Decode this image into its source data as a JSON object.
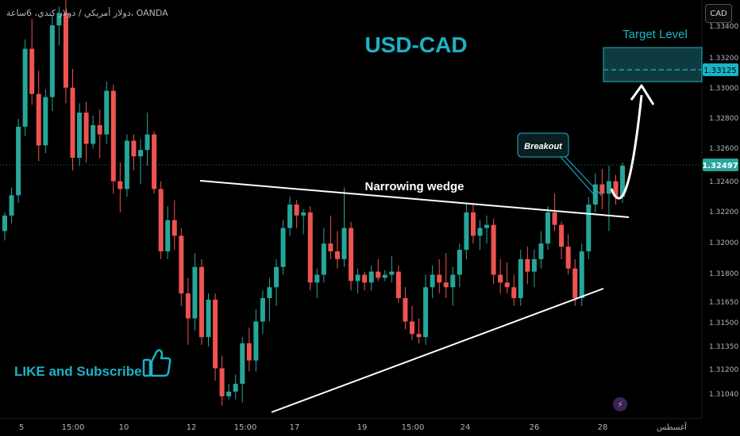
{
  "header": {
    "symbol_line": "دولار أمريكي / دولار كندي، 6ساعة، OANDA"
  },
  "currency_button": "CAD",
  "colors": {
    "up": "#26a69a",
    "down": "#ef5350",
    "accent": "#1ab3c6",
    "bg": "#000000"
  },
  "chart_data": {
    "type": "candlestick",
    "title": "USD-CAD",
    "last_price": "1.32497",
    "target_price_label": "1.33125",
    "y_ticks": [
      "1.33400",
      "1.33200",
      "1.33000",
      "1.32800",
      "1.32600",
      "1.32400",
      "1.32200",
      "1.32000",
      "1.31800",
      "1.31650",
      "1.31500",
      "1.31350",
      "1.31200",
      "1.31040"
    ],
    "x_ticks": [
      "5",
      "15:00",
      "10",
      "12",
      "15:00",
      "17",
      "19",
      "15:00",
      "24",
      "26",
      "28",
      "أغسطس"
    ],
    "annotations": {
      "target_level": "Target Level",
      "breakout": "Breakout",
      "wedge": "Narrowing wedge",
      "promo": "LIKE and Subscribe"
    },
    "candles": [
      [
        1.3208,
        1.322,
        1.3202,
        1.3218
      ],
      [
        1.3218,
        1.3236,
        1.3213,
        1.3231
      ],
      [
        1.3231,
        1.328,
        1.3226,
        1.3275
      ],
      [
        1.3275,
        1.3331,
        1.3269,
        1.3325
      ],
      [
        1.3325,
        1.3344,
        1.3289,
        1.3296
      ],
      [
        1.3296,
        1.3311,
        1.3253,
        1.3263
      ],
      [
        1.3263,
        1.3299,
        1.3258,
        1.3294
      ],
      [
        1.3294,
        1.3346,
        1.3285,
        1.334
      ],
      [
        1.334,
        1.3352,
        1.3327,
        1.3348
      ],
      [
        1.3348,
        1.3358,
        1.329,
        1.33
      ],
      [
        1.33,
        1.3312,
        1.3247,
        1.3255
      ],
      [
        1.3255,
        1.329,
        1.325,
        1.3284
      ],
      [
        1.3284,
        1.3291,
        1.3252,
        1.3264
      ],
      [
        1.3264,
        1.3282,
        1.3261,
        1.3276
      ],
      [
        1.3276,
        1.3286,
        1.3255,
        1.327
      ],
      [
        1.327,
        1.3304,
        1.3264,
        1.3298
      ],
      [
        1.3298,
        1.3302,
        1.3232,
        1.324
      ],
      [
        1.324,
        1.3252,
        1.322,
        1.3235
      ],
      [
        1.3235,
        1.327,
        1.323,
        1.3266
      ],
      [
        1.3266,
        1.327,
        1.3247,
        1.3256
      ],
      [
        1.3256,
        1.3267,
        1.3238,
        1.326
      ],
      [
        1.326,
        1.3284,
        1.325,
        1.327
      ],
      [
        1.327,
        1.3272,
        1.3232,
        1.3235
      ],
      [
        1.3235,
        1.324,
        1.319,
        1.3195
      ],
      [
        1.3195,
        1.3224,
        1.319,
        1.3215
      ],
      [
        1.3215,
        1.3228,
        1.3196,
        1.3205
      ],
      [
        1.3205,
        1.321,
        1.316,
        1.3168
      ],
      [
        1.3168,
        1.3178,
        1.3135,
        1.3152
      ],
      [
        1.3152,
        1.3194,
        1.3144,
        1.3185
      ],
      [
        1.3185,
        1.319,
        1.3135,
        1.314
      ],
      [
        1.314,
        1.3168,
        1.3134,
        1.3164
      ],
      [
        1.3164,
        1.3168,
        1.3112,
        1.312
      ],
      [
        1.312,
        1.3128,
        1.3096,
        1.3102
      ],
      [
        1.3102,
        1.311,
        1.31,
        1.3105
      ],
      [
        1.3105,
        1.3116,
        1.31,
        1.311
      ],
      [
        1.311,
        1.314,
        1.3098,
        1.3136
      ],
      [
        1.3136,
        1.3146,
        1.3118,
        1.3125
      ],
      [
        1.3125,
        1.3158,
        1.3118,
        1.315
      ],
      [
        1.315,
        1.317,
        1.3142,
        1.3165
      ],
      [
        1.3165,
        1.3178,
        1.315,
        1.3172
      ],
      [
        1.3172,
        1.319,
        1.316,
        1.3185
      ],
      [
        1.3185,
        1.3215,
        1.318,
        1.321
      ],
      [
        1.321,
        1.323,
        1.3205,
        1.3225
      ],
      [
        1.3225,
        1.3228,
        1.321,
        1.3218
      ],
      [
        1.3218,
        1.3222,
        1.3206,
        1.322
      ],
      [
        1.322,
        1.3224,
        1.317,
        1.3175
      ],
      [
        1.3175,
        1.3184,
        1.3165,
        1.318
      ],
      [
        1.318,
        1.321,
        1.3175,
        1.32
      ],
      [
        1.32,
        1.3218,
        1.319,
        1.3195
      ],
      [
        1.3195,
        1.3208,
        1.3184,
        1.319
      ],
      [
        1.319,
        1.3236,
        1.3185,
        1.321
      ],
      [
        1.321,
        1.3214,
        1.317,
        1.3176
      ],
      [
        1.3176,
        1.3184,
        1.3168,
        1.318
      ],
      [
        1.318,
        1.3182,
        1.317,
        1.3175
      ],
      [
        1.3175,
        1.3186,
        1.317,
        1.3182
      ],
      [
        1.3182,
        1.319,
        1.3176,
        1.3178
      ],
      [
        1.3178,
        1.3183,
        1.3176,
        1.318
      ],
      [
        1.318,
        1.3192,
        1.3175,
        1.3182
      ],
      [
        1.3182,
        1.3186,
        1.3162,
        1.3165
      ],
      [
        1.3165,
        1.3172,
        1.3145,
        1.315
      ],
      [
        1.315,
        1.316,
        1.3138,
        1.3142
      ],
      [
        1.3142,
        1.3152,
        1.3136,
        1.314
      ],
      [
        1.314,
        1.318,
        1.3135,
        1.3172
      ],
      [
        1.3172,
        1.3186,
        1.3165,
        1.318
      ],
      [
        1.318,
        1.319,
        1.3168,
        1.3175
      ],
      [
        1.3175,
        1.3194,
        1.3165,
        1.3172
      ],
      [
        1.3172,
        1.3185,
        1.316,
        1.318
      ],
      [
        1.318,
        1.32,
        1.3172,
        1.3196
      ],
      [
        1.3196,
        1.3226,
        1.319,
        1.322
      ],
      [
        1.322,
        1.3226,
        1.32,
        1.3205
      ],
      [
        1.3205,
        1.3215,
        1.3196,
        1.321
      ],
      [
        1.321,
        1.3218,
        1.32,
        1.3212
      ],
      [
        1.3212,
        1.3216,
        1.3174,
        1.318
      ],
      [
        1.318,
        1.319,
        1.3168,
        1.3175
      ],
      [
        1.3175,
        1.3188,
        1.3168,
        1.3172
      ],
      [
        1.3172,
        1.318,
        1.316,
        1.3165
      ],
      [
        1.3165,
        1.3196,
        1.316,
        1.319
      ],
      [
        1.319,
        1.3198,
        1.3174,
        1.3182
      ],
      [
        1.3182,
        1.3196,
        1.3172,
        1.319
      ],
      [
        1.319,
        1.3208,
        1.3184,
        1.32
      ],
      [
        1.32,
        1.3224,
        1.3196,
        1.322
      ],
      [
        1.322,
        1.3232,
        1.3208,
        1.3212
      ],
      [
        1.3212,
        1.3214,
        1.319,
        1.3198
      ],
      [
        1.3198,
        1.3206,
        1.318,
        1.3184
      ],
      [
        1.3184,
        1.319,
        1.316,
        1.3165
      ],
      [
        1.3165,
        1.32,
        1.316,
        1.3195
      ],
      [
        1.3195,
        1.323,
        1.319,
        1.3225
      ],
      [
        1.3225,
        1.3245,
        1.322,
        1.3238
      ],
      [
        1.3238,
        1.3248,
        1.3222,
        1.3232
      ],
      [
        1.3232,
        1.325,
        1.3208,
        1.324
      ],
      [
        1.324,
        1.3244,
        1.3225,
        1.323
      ],
      [
        1.323,
        1.3252,
        1.3226,
        1.325
      ]
    ]
  }
}
